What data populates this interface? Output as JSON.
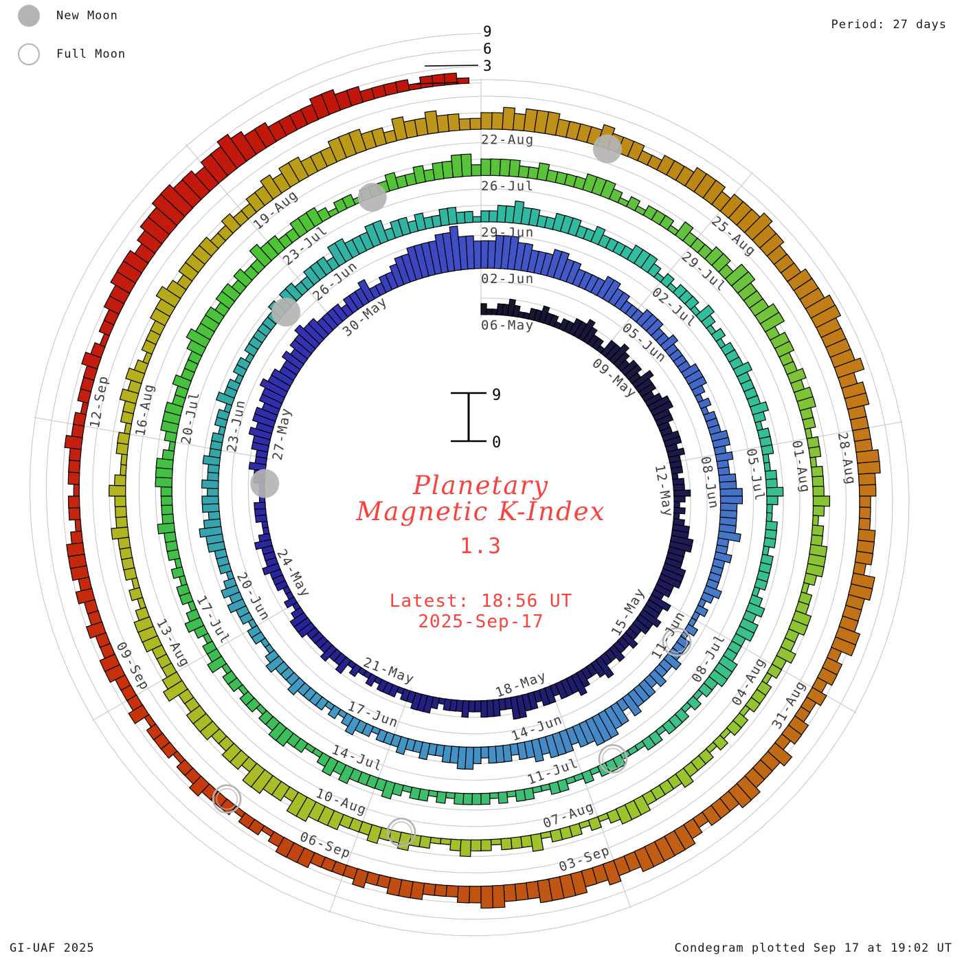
{
  "legend": {
    "new_moon": "New Moon",
    "full_moon": "Full Moon"
  },
  "header": {
    "period": "Period: 27 days"
  },
  "footer": {
    "credit": "GI-UAF 2025",
    "plotted": "Condegram plotted Sep 17 at 19:02 UT"
  },
  "center": {
    "title_line1": "Planetary",
    "title_line2": "Magnetic K-Index",
    "current_value": "1.3",
    "latest_line1": "Latest: 18:56 UT",
    "latest_line2": "2025-Sep-17"
  },
  "chart_data": {
    "type": "spiral_bar",
    "title": "Planetary Magnetic K-Index (Condegram)",
    "period_days": 27,
    "hours_per_bar": 3,
    "start_date": "2025-05-06",
    "end_label": "2025-Sep-17 18:56 UT",
    "k_range": [
      0,
      9
    ],
    "radial_axis_ticks": [
      "3",
      "6",
      "9"
    ],
    "scale_glyph_labels": {
      "top": "9",
      "bottom": "0"
    },
    "grid_levels": [
      0,
      3,
      6,
      9
    ],
    "date_labels": [
      "06-May",
      "09-May",
      "12-May",
      "15-May",
      "18-May",
      "21-May",
      "24-May",
      "27-May",
      "30-May",
      "02-Jun",
      "05-Jun",
      "08-Jun",
      "11-Jun",
      "14-Jun",
      "17-Jun",
      "20-Jun",
      "23-Jun",
      "26-Jun",
      "29-Jun",
      "02-Jul",
      "05-Jul",
      "08-Jul",
      "11-Jul",
      "14-Jul",
      "17-Jul",
      "20-Jul",
      "23-Jul",
      "26-Jul",
      "29-Jul",
      "01-Aug",
      "04-Aug",
      "07-Aug",
      "10-Aug",
      "13-Aug",
      "16-Aug",
      "19-Aug",
      "22-Aug",
      "25-Aug",
      "28-Aug",
      "31-Aug",
      "03-Sep",
      "06-Sep",
      "09-Sep",
      "12-Sep"
    ],
    "date_label_step_days": 3,
    "moons": {
      "new_moon_day_offsets": [
        20,
        50,
        79,
        109
      ],
      "full_moon_day_offsets": [
        36,
        65,
        95,
        124
      ],
      "marker_color": "#b4b4b4"
    },
    "colors": {
      "grid": "#c9c9c9",
      "bar_outline": "#000000",
      "label_text": "#3d3d3d",
      "accent_red_text": "#f9423e",
      "colormap_stops": [
        [
          0.0,
          "#16152f"
        ],
        [
          0.04,
          "#1b1a48"
        ],
        [
          0.078,
          "#1e1c64"
        ],
        [
          0.133,
          "#28249c"
        ],
        [
          0.178,
          "#3434b4"
        ],
        [
          0.2,
          "#4152c8"
        ],
        [
          0.274,
          "#4682c8"
        ],
        [
          0.32,
          "#429ac4"
        ],
        [
          0.356,
          "#31a8a8"
        ],
        [
          0.422,
          "#2fbfa0"
        ],
        [
          0.481,
          "#3cc084"
        ],
        [
          0.533,
          "#3cbe50"
        ],
        [
          0.578,
          "#4cc433"
        ],
        [
          0.622,
          "#63c23e"
        ],
        [
          0.644,
          "#84c434"
        ],
        [
          0.689,
          "#9ec42c"
        ],
        [
          0.756,
          "#b4b41e"
        ],
        [
          0.778,
          "#b8a014"
        ],
        [
          0.8,
          "#c0941c"
        ],
        [
          0.822,
          "#bc8514"
        ],
        [
          0.844,
          "#c47818"
        ],
        [
          0.867,
          "#c07016"
        ],
        [
          0.889,
          "#c05a14"
        ],
        [
          0.911,
          "#c04a10"
        ],
        [
          0.933,
          "#c8320a"
        ],
        [
          0.956,
          "#c41e10"
        ],
        [
          1.0,
          "#c01408"
        ]
      ]
    },
    "k_values_per_day": [
      "21122321",
      "12232212",
      "23343221",
      "33432332",
      "43323443",
      "32233232",
      "22122321",
      "21233443",
      "33444332",
      "43343322",
      "32232243",
      "22343332",
      "33233442",
      "23332232",
      "22123332",
      "21222121",
      "12132232",
      "22233321",
      "21122232",
      "22321122",
      "21112232",
      "23343443",
      "44544334",
      "34454433",
      "33233342",
      "23345566",
      "66778665",
      "55666554",
      "44554433",
      "33443322",
      "23332232",
      "22233321",
      "21222332",
      "32233443",
      "33342232",
      "22232121",
      "12122232",
      "23233342",
      "44555443",
      "44434332",
      "33323443",
      "32232232",
      "22122321",
      "21222232",
      "22321122",
      "12232321",
      "22233432",
      "33232232",
      "22122132",
      "21221222",
      "22232332",
      "23332443",
      "33442332",
      "32233221",
      "22334332",
      "23332232",
      "22233321",
      "21222132",
      "12122232",
      "22232122",
      "21122321",
      "12221222",
      "21232332",
      "22333221",
      "21222122",
      "11122212",
      "11221122",
      "12122221",
      "21221232",
      "22232321",
      "12233221",
      "22122132",
      "21232122",
      "12122232",
      "22233321",
      "23332232",
      "22343332",
      "33232243",
      "32233321",
      "22122232",
      "23233442",
      "33332232",
      "22233321",
      "21222132",
      "22332443",
      "33442332",
      "23233221",
      "22122232",
      "12233321",
      "22332232",
      "21222122",
      "12122232",
      "22233321",
      "21222132",
      "22122321",
      "12232232",
      "22333442",
      "33442332",
      "23332243",
      "22233321",
      "21222232",
      "22321122",
      "12232321",
      "22233432",
      "33332232",
      "23343443",
      "33444332",
      "43343322",
      "33434443",
      "33343332",
      "23334443",
      "44454433",
      "34445544",
      "44534433",
      "33443322",
      "23332443",
      "33442332",
      "32233243",
      "33443332",
      "34444433",
      "43344443",
      "33443322",
      "23332232",
      "22233321",
      "22122232",
      "21222132",
      "22332232",
      "23233321",
      "22122232",
      "21222321",
      "22334443",
      "45566554",
      "55654433",
      "33443322",
      "2212221"
    ]
  }
}
